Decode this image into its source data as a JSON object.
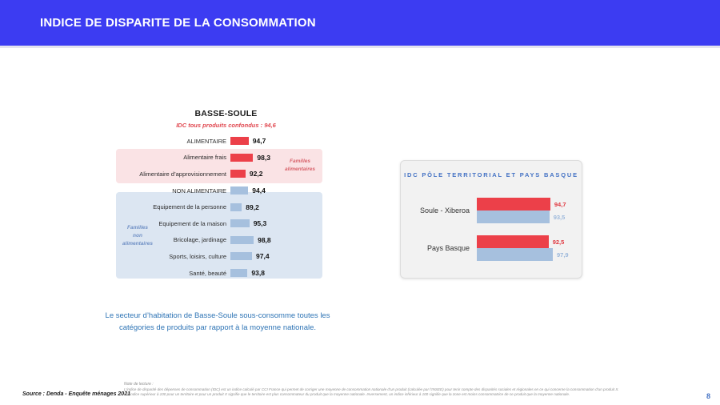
{
  "header": {
    "title": "INDICE DE DISPARITE DE LA CONSOMMATION"
  },
  "colors": {
    "header_bg": "#3C3CF2",
    "header_text": "#FFFFFF",
    "red_bar": "#EC4049",
    "blue_bar": "#A6C0DE",
    "red_value": "#E03840",
    "blue_value": "#9CB8DB",
    "pink_box": "#FAE3E5",
    "blue_box": "#DCE6F2",
    "annotation_red": "#D8646C",
    "annotation_blue": "#7090C5",
    "accent_blue": "#4472C4",
    "body_blue": "#2E74B5",
    "subtitle_red": "#E0474F"
  },
  "chart_data": [
    {
      "type": "bar",
      "orientation": "horizontal",
      "title": "BASSE-SOULE",
      "subtitle": "IDC tous produits confondus : 94,6",
      "xlim_implied": [
        80,
        100
      ],
      "rows": [
        {
          "label": "ALIMENTAIRE",
          "value": 94.7,
          "display": "94,7",
          "color": "red",
          "section": null
        },
        {
          "label": "Alimentaire frais",
          "value": 98.3,
          "display": "98,3",
          "color": "red",
          "section": "familles_alimentaires"
        },
        {
          "label": "Alimentaire d’approvisionnement",
          "value": 92.2,
          "display": "92,2",
          "color": "red",
          "section": "familles_alimentaires"
        },
        {
          "label": "NON ALIMENTAIRE",
          "value": 94.4,
          "display": "94,4",
          "color": "blue",
          "section": null
        },
        {
          "label": "Equipement de la personne",
          "value": 89.2,
          "display": "89,2",
          "color": "blue",
          "section": "familles_non_alimentaires"
        },
        {
          "label": "Equipement de la maison",
          "value": 95.3,
          "display": "95,3",
          "color": "blue",
          "section": "familles_non_alimentaires"
        },
        {
          "label": "Bricolage, jardinage",
          "value": 98.8,
          "display": "98,8",
          "color": "blue",
          "section": "familles_non_alimentaires"
        },
        {
          "label": "Sports, loisirs, culture",
          "value": 97.4,
          "display": "97,4",
          "color": "blue",
          "section": "familles_non_alimentaires"
        },
        {
          "label": "Santé, beauté",
          "value": 93.8,
          "display": "93,8",
          "color": "blue",
          "section": "familles_non_alimentaires"
        }
      ],
      "annotations": {
        "familles_alimentaires": "Familles\nalimentaires",
        "familles_non_alimentaires": "Familles\nnon\nalimentaires"
      }
    },
    {
      "type": "bar",
      "orientation": "horizontal",
      "title": "IDC PÔLE TERRITORIAL ET PAYS BASQUE",
      "xlim_implied": [
        0,
        100
      ],
      "categories": [
        "Soule - Xiberoa",
        "Pays Basque"
      ],
      "series": [
        {
          "color": "red",
          "values": [
            94.7,
            92.5
          ],
          "displays": [
            "94,7",
            "92,5"
          ]
        },
        {
          "color": "blue",
          "values": [
            93.5,
            97.9
          ],
          "displays": [
            "93,5",
            "97,9"
          ]
        }
      ]
    }
  ],
  "insight": {
    "text": "Le secteur d’habitation de Basse-Soule sous-consomme toutes les catégories de produits par rapport à la moyenne nationale."
  },
  "footer": {
    "source": "Source : Denda - Enquête ménages 2021",
    "note_title": "Note de lecture :",
    "note_line1": "L’indice de disparité des dépenses de consommation (IDC) est un indice calculé par CCI France qui permet de corriger une moyenne de consommation nationale d’un produit (calculée par l’INSEE) pour tenir compte des disparités sociales et régionales en ce qui concerne la consommation d’un produit X.",
    "note_line2": "Un indice supérieur à 100 pour un territoire et pour un produit X signifie que le territoire est plus consommateur du produit que la moyenne nationale. Inversement, un indice inférieur à 100 signifie que la zone est moins consommatrice de ce produit que la moyenne nationale.",
    "page_number": "8"
  }
}
